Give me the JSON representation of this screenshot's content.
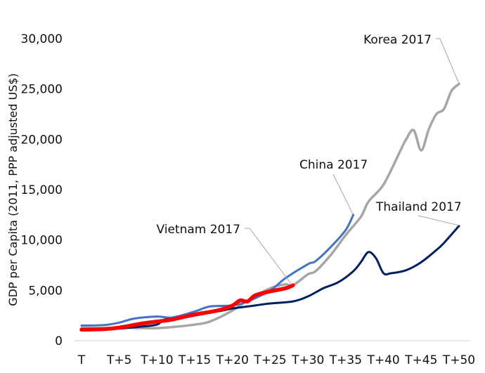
{
  "chart_data": {
    "type": "line",
    "title": "",
    "xlabel": "",
    "ylabel": "GDP per Capita  (2011, PPP adjusted US$)",
    "ylim": [
      0,
      30000
    ],
    "xlim": [
      0,
      50
    ],
    "grid": false,
    "legend": "none (direct labels)",
    "yticks": [
      {
        "value": 0,
        "label": "0"
      },
      {
        "value": 5000,
        "label": "5,000"
      },
      {
        "value": 10000,
        "label": "10,000"
      },
      {
        "value": 15000,
        "label": "15,000"
      },
      {
        "value": 20000,
        "label": "20,000"
      },
      {
        "value": 25000,
        "label": "25,000"
      },
      {
        "value": 30000,
        "label": "30,000"
      }
    ],
    "xticks": [
      {
        "value": 0,
        "label": "T"
      },
      {
        "value": 5,
        "label": "T+5"
      },
      {
        "value": 10,
        "label": "T+10"
      },
      {
        "value": 15,
        "label": "T+15"
      },
      {
        "value": 20,
        "label": "T+20"
      },
      {
        "value": 25,
        "label": "T+25"
      },
      {
        "value": 30,
        "label": "T+30"
      },
      {
        "value": 35,
        "label": "T+35"
      },
      {
        "value": 40,
        "label": "T+40"
      },
      {
        "value": 45,
        "label": "T+45"
      },
      {
        "value": 50,
        "label": "T+50"
      }
    ],
    "series": [
      {
        "name": "Korea 2017",
        "color": "#a6a6a6",
        "width": 3.5,
        "x": [
          0,
          3,
          5,
          8,
          10,
          12,
          15,
          17,
          20,
          22,
          25,
          27,
          28,
          30,
          31,
          33,
          35,
          37,
          38,
          40,
          42,
          43,
          44,
          45,
          46,
          47,
          48,
          49,
          50
        ],
        "y": [
          1250,
          1250,
          1300,
          1250,
          1250,
          1350,
          1600,
          1900,
          3000,
          4000,
          5200,
          5600,
          5500,
          6600,
          6900,
          8500,
          10500,
          12300,
          13800,
          15500,
          18500,
          20000,
          20900,
          18900,
          21000,
          22500,
          23000,
          24800,
          25500
        ]
      },
      {
        "name": "China 2017",
        "color": "#4472c4",
        "width": 3,
        "x": [
          0,
          3,
          5,
          7,
          10,
          12,
          15,
          17,
          20,
          22,
          25,
          27,
          30,
          31,
          33,
          35,
          36
        ],
        "y": [
          1500,
          1550,
          1800,
          2200,
          2400,
          2300,
          2900,
          3400,
          3500,
          3900,
          5000,
          6200,
          7600,
          7900,
          9300,
          11000,
          12500
        ]
      },
      {
        "name": "Thailand 2017",
        "color": "#002060",
        "width": 3,
        "x": [
          0,
          3,
          5,
          8,
          10,
          11,
          13,
          15,
          18,
          20,
          23,
          25,
          28,
          30,
          32,
          34,
          36,
          37,
          38,
          39,
          40,
          41,
          43,
          45,
          47,
          48,
          50
        ],
        "y": [
          1000,
          1100,
          1200,
          1400,
          1600,
          2100,
          2200,
          2500,
          2900,
          3200,
          3500,
          3700,
          3900,
          4400,
          5200,
          5800,
          6900,
          7800,
          8800,
          8200,
          6700,
          6700,
          7000,
          7800,
          9000,
          9700,
          11400
        ]
      },
      {
        "name": "Vietnam 2017",
        "color": "#ff0000",
        "width": 5.5,
        "x": [
          0,
          3,
          5,
          8,
          10,
          12,
          15,
          18,
          20,
          21,
          22,
          23,
          25,
          27,
          28
        ],
        "y": [
          1100,
          1150,
          1300,
          1700,
          1900,
          2100,
          2600,
          3000,
          3500,
          4000,
          3900,
          4500,
          4900,
          5200,
          5500
        ]
      }
    ]
  }
}
